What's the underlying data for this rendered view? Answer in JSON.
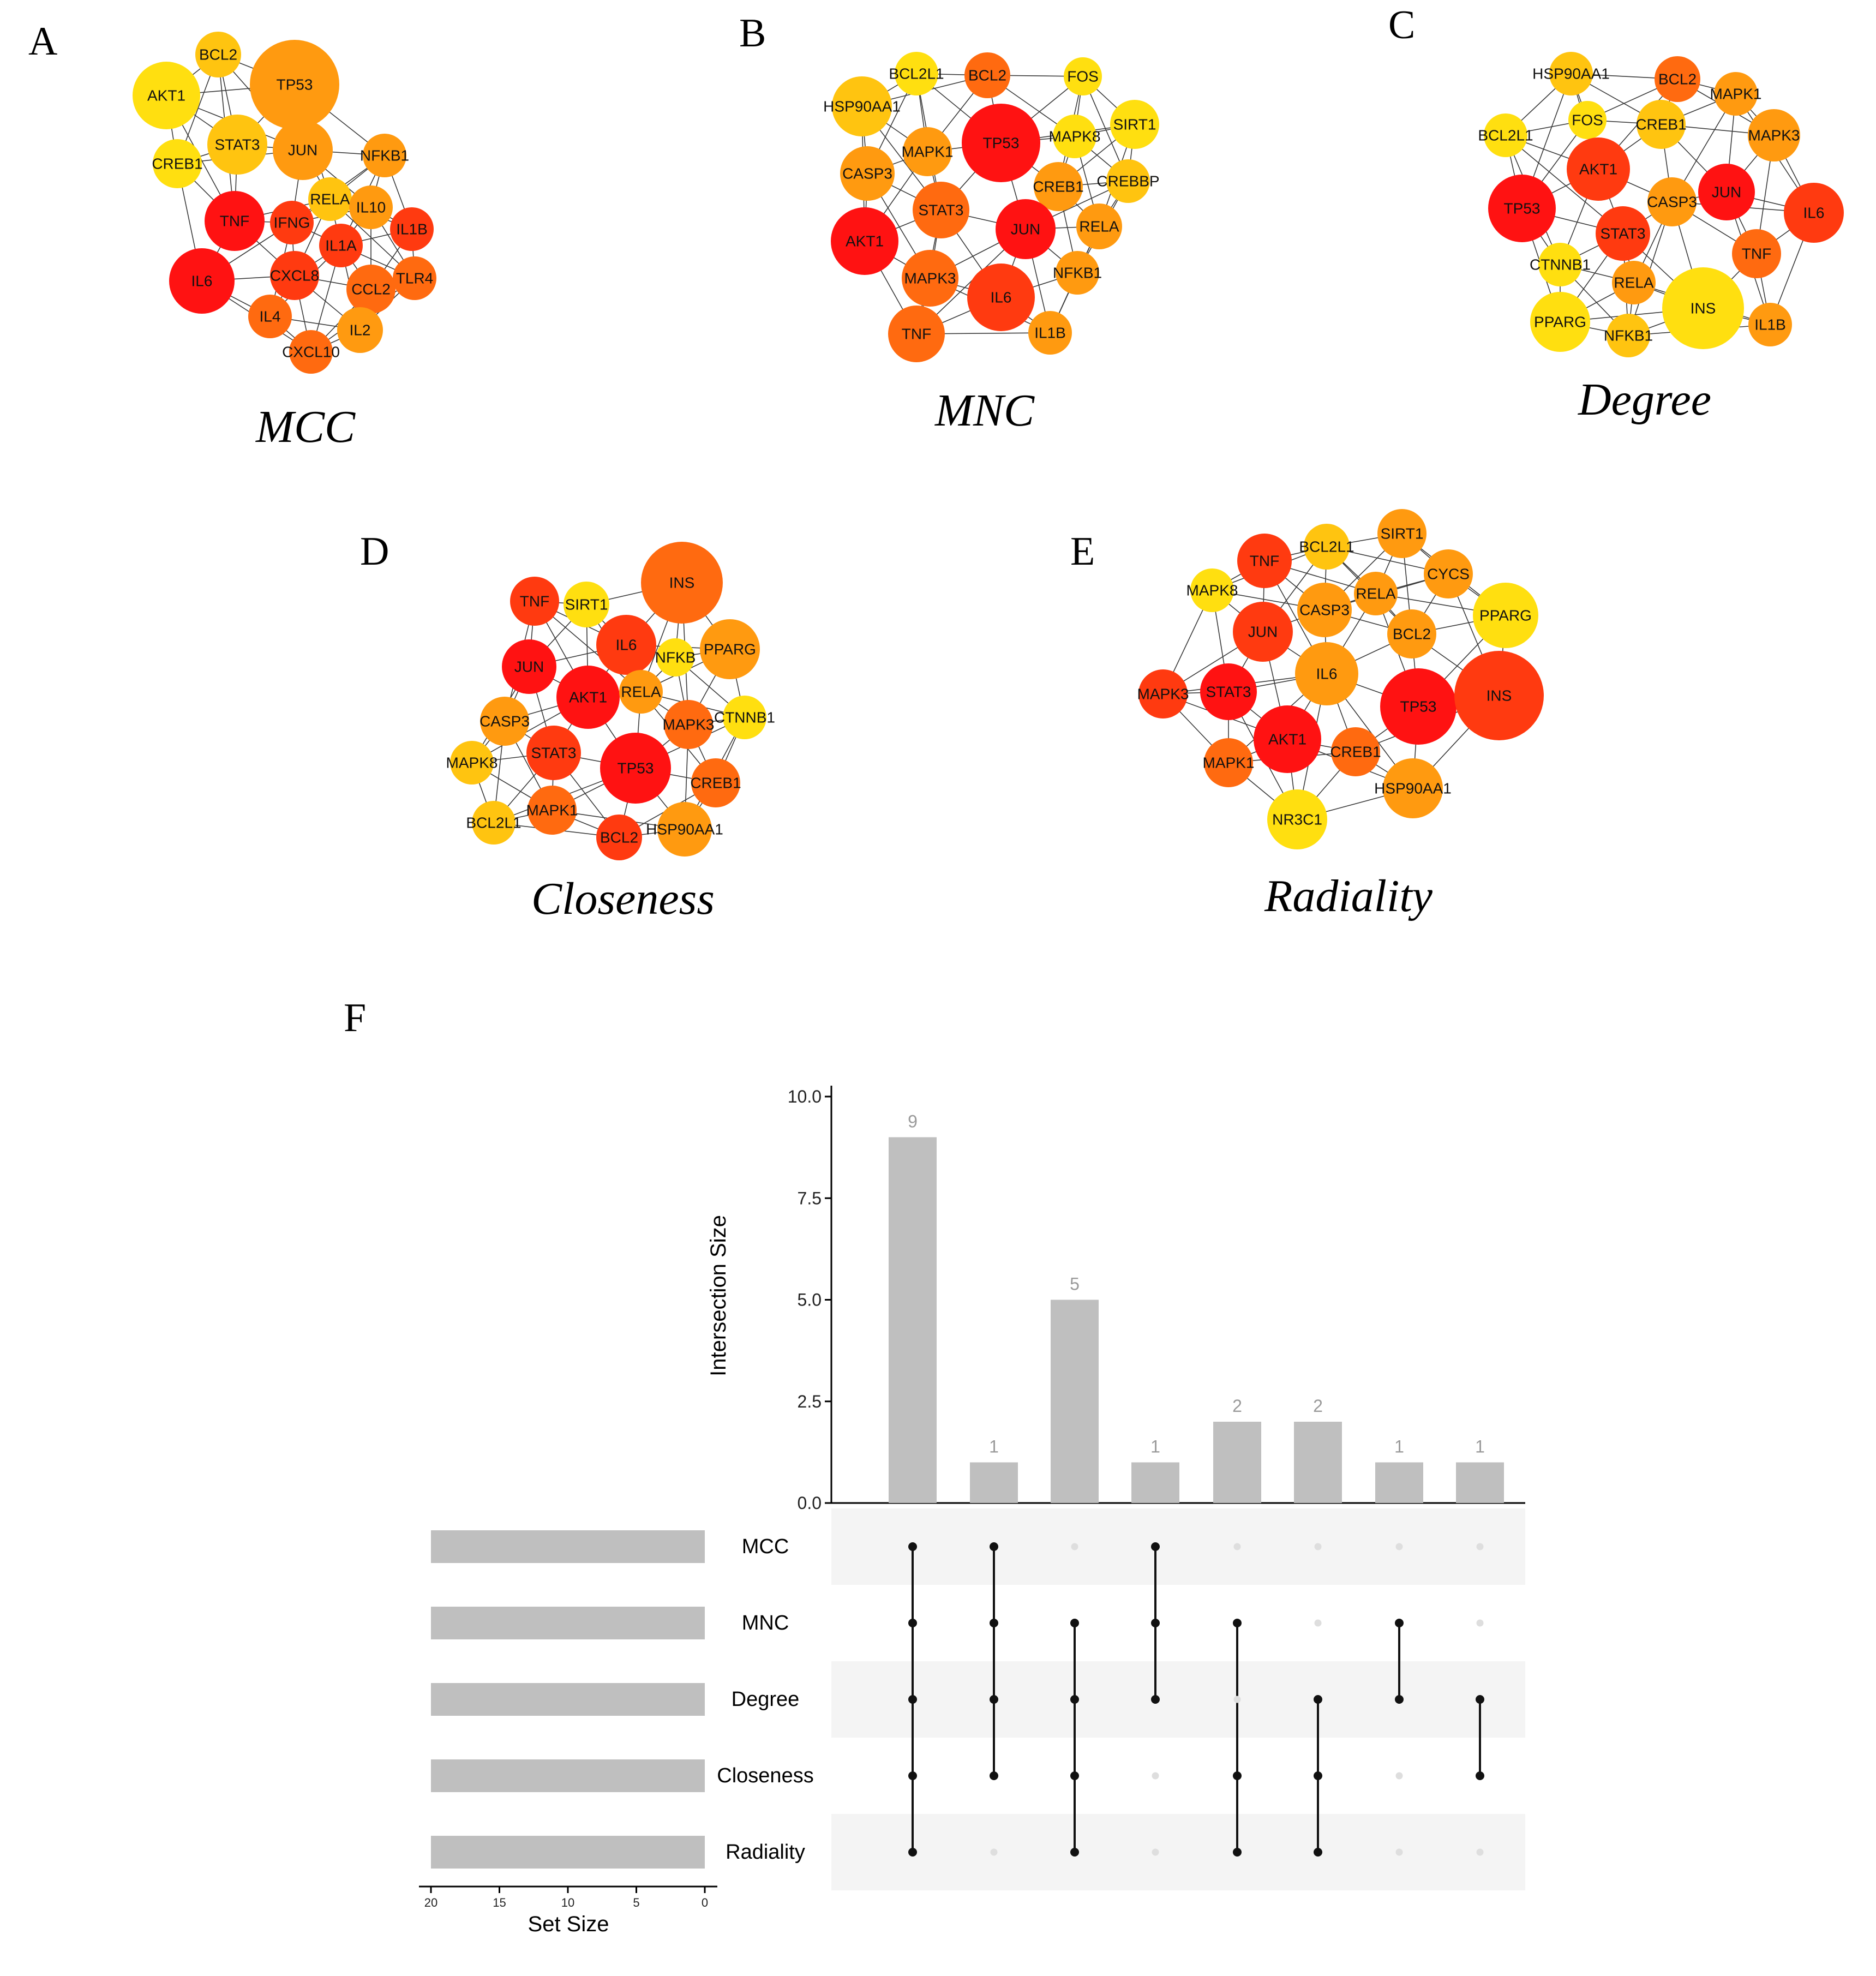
{
  "panel_letters": [
    "A",
    "B",
    "C",
    "D",
    "E",
    "F"
  ],
  "networks": [
    {
      "letter": "A",
      "title": "MCC",
      "labels": [
        "BCL2",
        "TP53",
        "AKT1",
        "STAT3",
        "JUN",
        "CREB1",
        "NFKB1",
        "RELA",
        "IL10",
        "TNF",
        "IFNG",
        "IL1B",
        "IL1A",
        "IL6",
        "CXCL8",
        "CCL2",
        "TLR4",
        "IL4",
        "IL2",
        "CXCL10"
      ]
    },
    {
      "letter": "B",
      "title": "MNC",
      "labels": [
        "BCL2L1",
        "BCL2",
        "FOS",
        "HSP90AA1",
        "SIRT1",
        "TP53",
        "MAPK8",
        "MAPK1",
        "CASP3",
        "CREB1",
        "CREBBP",
        "STAT3",
        "JUN",
        "RELA",
        "AKT1",
        "NFKB1",
        "MAPK3",
        "IL6",
        "TNF",
        "IL1B"
      ]
    },
    {
      "letter": "C",
      "title": "Degree",
      "labels": [
        "HSP90AA1",
        "BCL2",
        "MAPK1",
        "FOS",
        "CREB1",
        "MAPK3",
        "BCL2L1",
        "AKT1",
        "JUN",
        "CASP3",
        "TP53",
        "IL6",
        "STAT3",
        "TNF",
        "CTNNB1",
        "RELA",
        "INS",
        "PPARG",
        "NFKB1",
        "IL1B"
      ]
    },
    {
      "letter": "D",
      "title": "Closeness",
      "labels": [
        "INS",
        "TNF",
        "SIRT1",
        "IL6",
        "JUN",
        "NFKB",
        "PPARG",
        "AKT1",
        "RELA",
        "CASP3",
        "MAPK3",
        "CTNNB1",
        "MAPK8",
        "STAT3",
        "TP53",
        "CREB1",
        "MAPK1",
        "BCL2L1",
        "BCL2",
        "HSP90AA1"
      ]
    },
    {
      "letter": "E",
      "title": "Radiality",
      "labels": [
        "SIRT1",
        "TNF",
        "BCL2L1",
        "CYCS",
        "MAPK8",
        "RELA",
        "CASP3",
        "PPARG",
        "JUN",
        "BCL2",
        "IL6",
        "MAPK3",
        "STAT3",
        "TP53",
        "INS",
        "AKT1",
        "CREB1",
        "MAPK1",
        "HSP90AA1",
        "NR3C1"
      ]
    }
  ],
  "chart_data": {
    "type": "upset",
    "panel": "F",
    "sets": [
      "MCC",
      "MNC",
      "Degree",
      "Closeness",
      "Radiality"
    ],
    "set_sizes": [
      20,
      20,
      20,
      20,
      20
    ],
    "set_size_axis": {
      "label": "Set Size",
      "ticks": [
        20,
        15,
        10,
        5,
        0
      ],
      "lim": [
        0,
        20
      ]
    },
    "intersection_axis": {
      "label": "Intersection Size",
      "ticks": [
        0.0,
        2.5,
        5.0,
        7.5,
        10.0
      ],
      "tick_labels": [
        "0.0",
        "2.5",
        "5.0",
        "7.5",
        "10.0"
      ],
      "lim": [
        0,
        10
      ]
    },
    "intersections": [
      {
        "value": 9,
        "label": "9",
        "members": [
          "MCC",
          "MNC",
          "Degree",
          "Closeness",
          "Radiality"
        ]
      },
      {
        "value": 1,
        "label": "1",
        "members": [
          "MCC",
          "MNC",
          "Degree",
          "Closeness"
        ]
      },
      {
        "value": 5,
        "label": "5",
        "members": [
          "MNC",
          "Degree",
          "Closeness",
          "Radiality"
        ]
      },
      {
        "value": 1,
        "label": "1",
        "members": [
          "MCC",
          "MNC",
          "Degree"
        ]
      },
      {
        "value": 2,
        "label": "2",
        "members": [
          "MNC",
          "Closeness",
          "Radiality"
        ]
      },
      {
        "value": 2,
        "label": "2",
        "members": [
          "Degree",
          "Closeness",
          "Radiality"
        ]
      },
      {
        "value": 1,
        "label": "1",
        "members": [
          "MNC",
          "Degree"
        ]
      },
      {
        "value": 1,
        "label": "1",
        "members": [
          "Degree",
          "Closeness"
        ]
      }
    ],
    "colors": {
      "bar": "#bfbfbf",
      "dot_on": "#111111",
      "dot_off": "#dedede",
      "stripe": "#f4f4f4"
    }
  }
}
